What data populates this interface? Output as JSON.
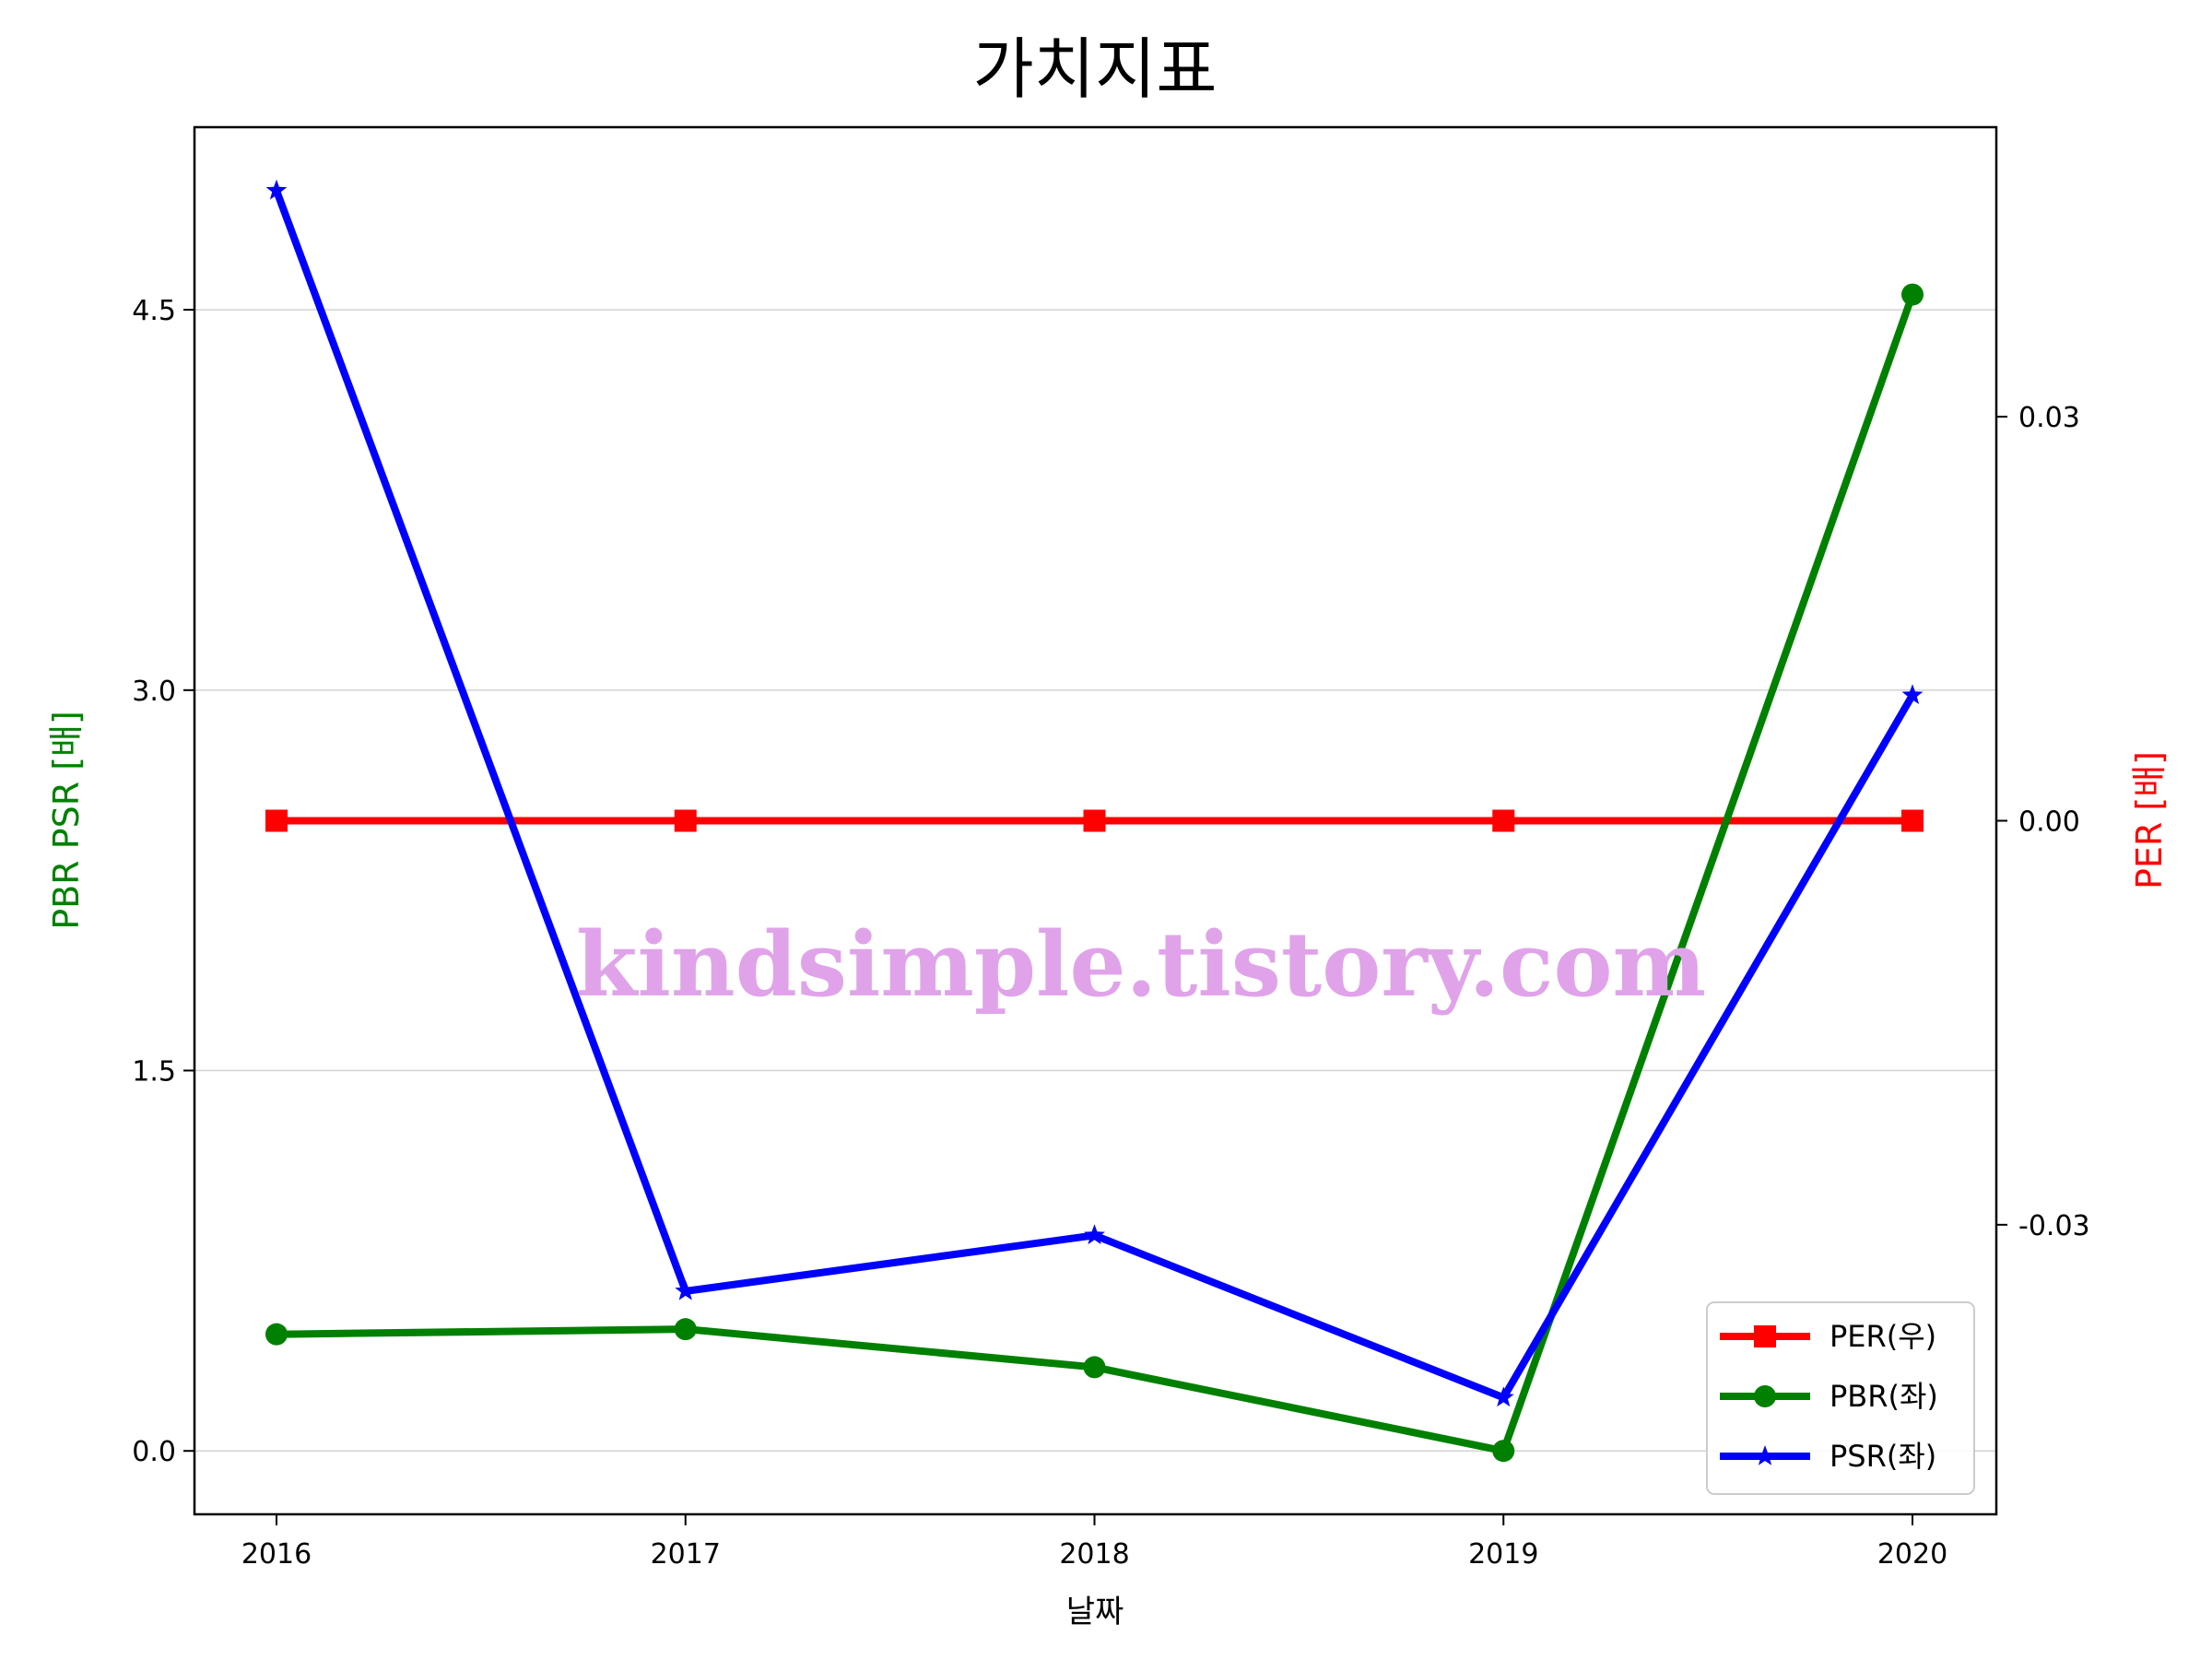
{
  "chart_data": {
    "type": "line",
    "title": "가치지표",
    "xlabel": "날짜",
    "ylabel_left": "PBR PSR [배]",
    "ylabel_right": "PER [배]",
    "categories": [
      "2016",
      "2017",
      "2018",
      "2019",
      "2020"
    ],
    "left_ylim": [
      -0.25,
      5.22
    ],
    "left_yticks": [
      "0.0",
      "1.5",
      "3.0",
      "4.5"
    ],
    "right_ylim": [
      -0.0515,
      0.0515
    ],
    "right_yticks": [
      "-0.03",
      "0.00",
      "0.03"
    ],
    "grid": true,
    "legend_position": "bottom-right",
    "watermark": "kindsimple.tistory.com",
    "series": [
      {
        "name": "PER(우)",
        "axis": "right",
        "marker": "square",
        "color": "#ff0000",
        "values": [
          0,
          0,
          0,
          0,
          0
        ]
      },
      {
        "name": "PBR(좌)",
        "axis": "left",
        "marker": "circle",
        "color": "#008000",
        "values": [
          0.46,
          0.48,
          0.33,
          0.0,
          4.56
        ]
      },
      {
        "name": "PSR(좌)",
        "axis": "left",
        "marker": "star",
        "color": "#0000ff",
        "values": [
          4.97,
          0.63,
          0.85,
          0.21,
          2.98
        ]
      }
    ]
  }
}
